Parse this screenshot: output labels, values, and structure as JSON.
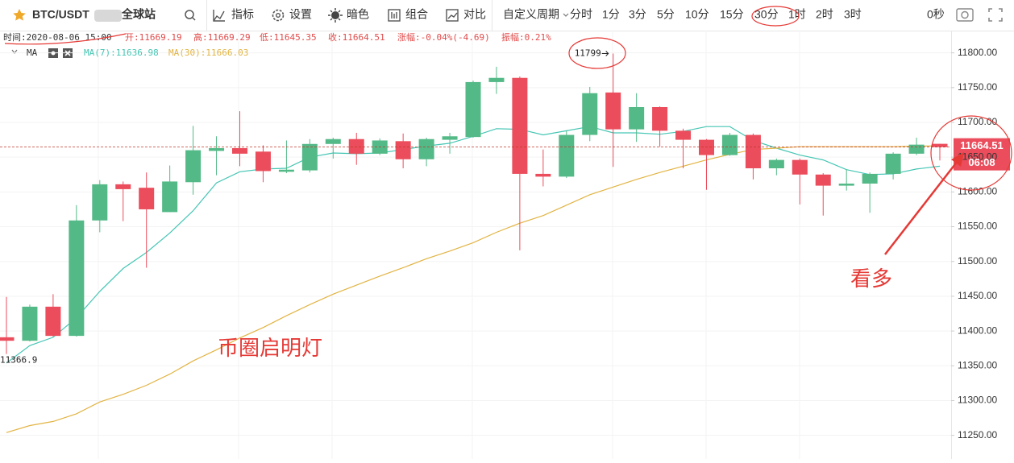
{
  "toolbar": {
    "symbol": "BTC/USDT",
    "site": "全球站",
    "items": [
      "指标",
      "设置",
      "暗色",
      "组合",
      "对比"
    ],
    "custom_period": "自定义周期",
    "periods": [
      "分时",
      "1分",
      "3分",
      "5分",
      "10分",
      "15分",
      "30分",
      "1时",
      "2时",
      "3时"
    ],
    "active_period": 6,
    "refresh": "0秒"
  },
  "chart_data": {
    "type": "candlestick",
    "header": [
      "时间:2020-08-06 15:00",
      "开:11669.19",
      "高:11669.29",
      "低:11645.35",
      "收:11664.51",
      "涨幅:-0.04%(-4.69)",
      "振幅:0.21%"
    ],
    "ma_title": "MA",
    "open": [
      11391,
      11386,
      11435,
      11393,
      11559,
      11611,
      11606,
      11571,
      11614,
      11659,
      11663,
      11658,
      11629,
      11631,
      11669,
      11676,
      11655,
      11673,
      11647,
      11675,
      11679,
      11758,
      11764,
      11626,
      11622,
      11682,
      11743,
      11690,
      11722,
      11688,
      11675,
      11653,
      11682,
      11634,
      11646,
      11625,
      11609,
      11612,
      11626,
      11655,
      11669.19
    ],
    "high": [
      11449,
      11438,
      11453,
      11581,
      11617,
      11615,
      11628,
      11638,
      11695,
      11680,
      11716,
      11667,
      11674,
      11676,
      11678,
      11685,
      11677,
      11684,
      11678,
      11685,
      11760,
      11780,
      11766,
      11661,
      11688,
      11751,
      11799,
      11742,
      11723,
      11691,
      11676,
      11685,
      11684,
      11648,
      11648,
      11627,
      11632,
      11628,
      11657,
      11678,
      11669.29
    ],
    "low": [
      11366.9,
      11385,
      11392,
      11392,
      11542,
      11558,
      11491,
      11571,
      11596,
      11624,
      11637,
      11614,
      11627,
      11628,
      11648,
      11639,
      11653,
      11634,
      11637,
      11655,
      11678,
      11741,
      11516,
      11608,
      11620,
      11673,
      11636,
      11672,
      11665,
      11634,
      11603,
      11652,
      11618,
      11624,
      11582,
      11566,
      11602,
      11570,
      11618,
      11653,
      11645.35
    ],
    "close": [
      11386,
      11435,
      11393,
      11559,
      11611,
      11604,
      11575,
      11615,
      11660,
      11663,
      11655,
      11630,
      11632,
      11669,
      11676,
      11655,
      11674,
      11647,
      11676,
      11680,
      11758,
      11764,
      11626,
      11622,
      11682,
      11742,
      11690,
      11722,
      11688,
      11675,
      11653,
      11682,
      11634,
      11646,
      11625,
      11609,
      11612,
      11626,
      11655,
      11668,
      11664.51
    ],
    "up_color": "#53b987",
    "down_color": "#eb4d5c",
    "series": [
      {
        "name": "MA(7):11636.98",
        "color": "#45c6b4",
        "values": [
          11354,
          11379,
          11391,
          11419,
          11457,
          11490,
          11513,
          11541,
          11573,
          11613,
          11629,
          11633,
          11634,
          11650,
          11656,
          11655,
          11656,
          11661,
          11666,
          11670,
          11680,
          11691,
          11690,
          11682,
          11688,
          11694,
          11685,
          11685,
          11683,
          11687,
          11694,
          11694,
          11674,
          11663,
          11653,
          11646,
          11632,
          11625,
          11626,
          11633,
          11636.98
        ]
      },
      {
        "name": "MA(30):11666.03",
        "color": "#e2b443",
        "values": [
          11254,
          11264,
          11270,
          11281,
          11298,
          11309,
          11322,
          11338,
          11357,
          11373,
          11390,
          11405,
          11422,
          11438,
          11453,
          11466,
          11479,
          11491,
          11504,
          11515,
          11527,
          11542,
          11555,
          11566,
          11581,
          11596,
          11607,
          11618,
          11628,
          11637,
          11646,
          11654,
          11661,
          11663,
          11665,
          11665,
          11665,
          11665,
          11665,
          11666,
          11666.03
        ]
      }
    ],
    "ylim": [
      11216,
      11832
    ],
    "yticks": [
      {
        "value": 11250,
        "label": "11250.00"
      },
      {
        "value": 11300,
        "label": "11300.00"
      },
      {
        "value": 11350,
        "label": "11350.00"
      },
      {
        "value": 11400,
        "label": "11400.00"
      },
      {
        "value": 11450,
        "label": "11450.00"
      },
      {
        "value": 11500,
        "label": "11500.00"
      },
      {
        "value": 11550,
        "label": "11550.00"
      },
      {
        "value": 11600,
        "label": "11600.00"
      },
      {
        "value": 11650,
        "label": "11650.00"
      },
      {
        "value": 11700,
        "label": "11700.00"
      },
      {
        "value": 11750,
        "label": "11750.00"
      },
      {
        "value": 11800,
        "label": "11800.00"
      }
    ],
    "grid": true,
    "max_label": "11799",
    "min_label": "11366.9",
    "last_price": 11664.51,
    "countdown": "06:08",
    "annotations": [
      "币圈启明灯",
      "看多"
    ]
  }
}
